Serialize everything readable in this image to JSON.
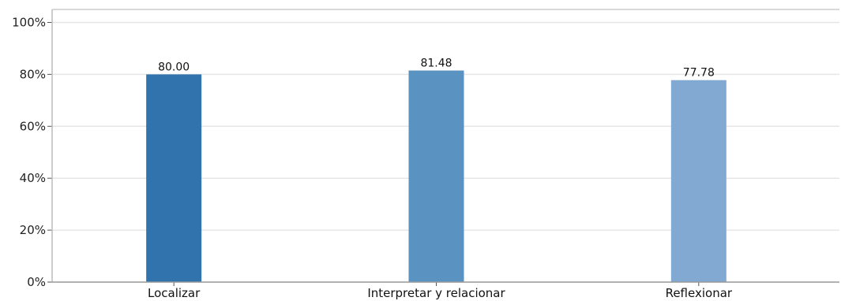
{
  "chart_data": {
    "type": "bar",
    "categories": [
      "Localizar",
      "Interpretar y relacionar",
      "Reflexionar"
    ],
    "values": [
      80.0,
      81.48,
      77.78
    ],
    "value_labels": [
      "80.00",
      "81.48",
      "77.78"
    ],
    "colors": [
      "#3174ad",
      "#5a92c2",
      "#82a9d1"
    ],
    "ylim": [
      0,
      105
    ],
    "yticks": [
      0,
      20,
      40,
      60,
      80,
      100
    ],
    "ytick_labels": [
      "0%",
      "20%",
      "40%",
      "60%",
      "80%",
      "100%"
    ],
    "grid": true,
    "title": "",
    "xlabel": "",
    "ylabel": ""
  }
}
